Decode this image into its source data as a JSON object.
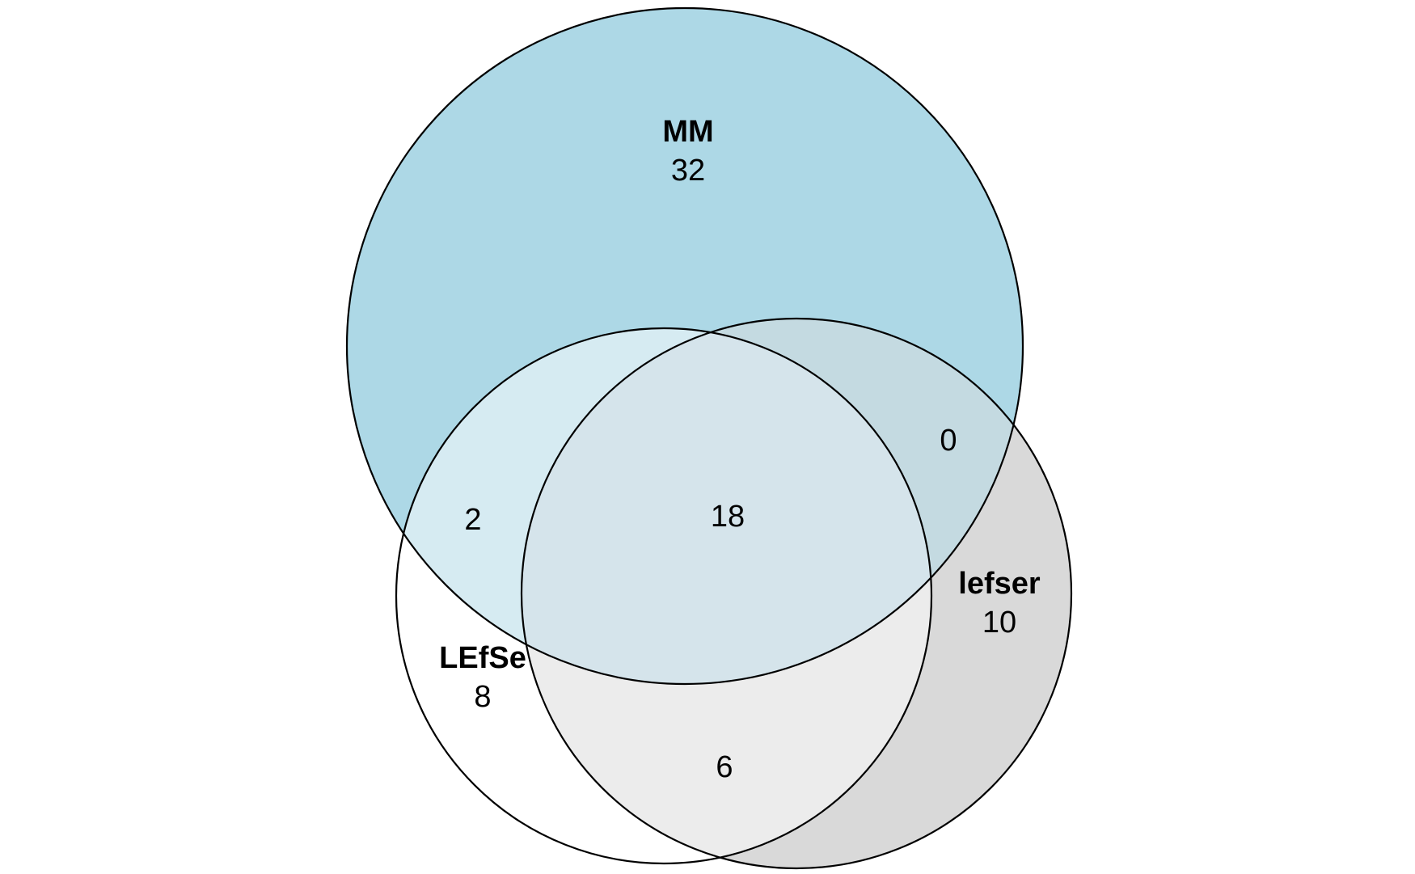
{
  "sets": {
    "mm": {
      "name": "MM",
      "count": "32",
      "color": "#add8e6"
    },
    "lefse": {
      "name": "LEfSe",
      "count": "8",
      "color": "#ffffff"
    },
    "lefser": {
      "name": "lefser",
      "count": "10",
      "color": "#d9d9d9"
    }
  },
  "intersections": {
    "mm_lefse": "2",
    "mm_lefser": "0",
    "lefse_lefser": "6",
    "all_three": "18"
  },
  "colors": {
    "mm_lefse": "#d6ebf2",
    "mm_lefser": "#c4dae1",
    "lefse_lefser": "#ececec",
    "all_three": "#d5e4eb"
  }
}
